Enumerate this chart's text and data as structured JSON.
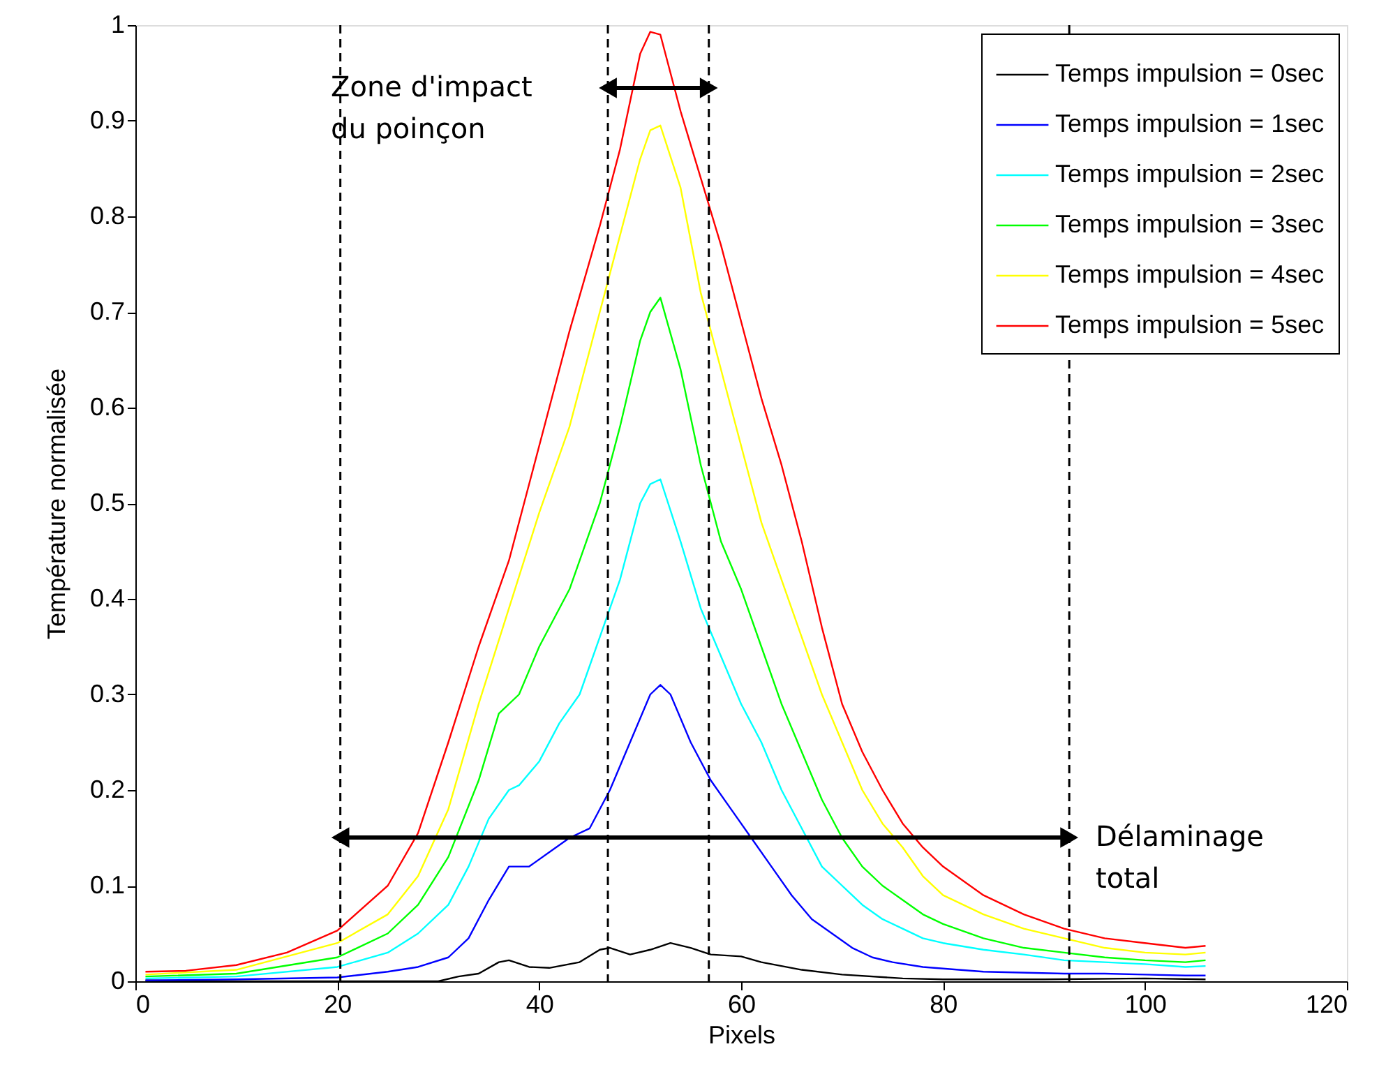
{
  "chart_data": {
    "type": "line",
    "xlabel": "Pixels",
    "ylabel": "Température normalisée",
    "xlim": [
      0,
      120
    ],
    "xticks": [
      0,
      20,
      40,
      60,
      80,
      100,
      120
    ],
    "ylim": [
      0,
      1
    ],
    "yticks": [
      0,
      0.1,
      0.2,
      0.3,
      0.4,
      0.5,
      0.6,
      0.7,
      0.8,
      0.9,
      1
    ],
    "grid": false,
    "legend": "top right",
    "marker": "none",
    "line_style": "solid",
    "series": [
      {
        "name": "Temps impulsion = 0sec",
        "color": "#000000",
        "x": [
          1,
          10,
          20,
          30,
          32,
          34,
          36,
          37,
          39,
          41,
          44,
          46,
          47,
          49,
          51,
          53,
          55,
          57,
          60,
          62,
          66,
          70,
          76,
          80,
          90,
          100,
          106
        ],
        "values": [
          0.001,
          0.0,
          0.0,
          0.0,
          0.005,
          0.008,
          0.02,
          0.022,
          0.015,
          0.014,
          0.02,
          0.033,
          0.035,
          0.028,
          0.033,
          0.04,
          0.035,
          0.028,
          0.026,
          0.02,
          0.012,
          0.007,
          0.003,
          0.002,
          0.002,
          0.003,
          0.002
        ]
      },
      {
        "name": "Temps impulsion = 1sec",
        "color": "#0000ff",
        "x": [
          1,
          10,
          20,
          25,
          28,
          31,
          33,
          35,
          37,
          39,
          41,
          43,
          45,
          47,
          49,
          51,
          52,
          53,
          55,
          57,
          59,
          61,
          63,
          65,
          67,
          69,
          71,
          73,
          75,
          78,
          84,
          92,
          96,
          100,
          104,
          106
        ],
        "values": [
          0.001,
          0.002,
          0.004,
          0.01,
          0.015,
          0.025,
          0.045,
          0.085,
          0.12,
          0.12,
          0.135,
          0.15,
          0.16,
          0.2,
          0.25,
          0.3,
          0.31,
          0.3,
          0.25,
          0.21,
          0.18,
          0.15,
          0.12,
          0.09,
          0.065,
          0.05,
          0.035,
          0.025,
          0.02,
          0.015,
          0.01,
          0.008,
          0.008,
          0.007,
          0.006,
          0.006
        ]
      },
      {
        "name": "Temps impulsion = 2sec",
        "color": "#00ffff",
        "x": [
          1,
          10,
          20,
          25,
          28,
          31,
          33,
          35,
          37,
          38,
          40,
          42,
          44,
          46,
          48,
          50,
          51,
          52,
          54,
          56,
          58,
          60,
          62,
          64,
          66,
          68,
          70,
          72,
          74,
          76,
          78,
          80,
          84,
          88,
          92,
          96,
          100,
          104,
          106
        ],
        "values": [
          0.003,
          0.005,
          0.015,
          0.03,
          0.05,
          0.08,
          0.12,
          0.17,
          0.2,
          0.205,
          0.23,
          0.27,
          0.3,
          0.36,
          0.42,
          0.5,
          0.52,
          0.525,
          0.46,
          0.39,
          0.34,
          0.29,
          0.25,
          0.2,
          0.16,
          0.12,
          0.1,
          0.08,
          0.065,
          0.055,
          0.045,
          0.04,
          0.033,
          0.028,
          0.022,
          0.02,
          0.018,
          0.015,
          0.016
        ]
      },
      {
        "name": "Temps impulsion = 3sec",
        "color": "#00ff00",
        "x": [
          1,
          10,
          20,
          25,
          28,
          31,
          34,
          36,
          38,
          40,
          43,
          46,
          48,
          50,
          51,
          52,
          54,
          56,
          58,
          60,
          62,
          64,
          66,
          68,
          70,
          72,
          74,
          76,
          78,
          80,
          84,
          88,
          92,
          96,
          100,
          104,
          106
        ],
        "values": [
          0.005,
          0.008,
          0.025,
          0.05,
          0.08,
          0.13,
          0.21,
          0.28,
          0.3,
          0.35,
          0.41,
          0.5,
          0.58,
          0.67,
          0.7,
          0.715,
          0.64,
          0.54,
          0.46,
          0.41,
          0.35,
          0.29,
          0.24,
          0.19,
          0.15,
          0.12,
          0.1,
          0.085,
          0.07,
          0.06,
          0.045,
          0.035,
          0.03,
          0.025,
          0.022,
          0.02,
          0.022
        ]
      },
      {
        "name": "Temps impulsion = 4sec",
        "color": "#ffff00",
        "x": [
          1,
          10,
          20,
          25,
          28,
          31,
          34,
          37,
          40,
          43,
          46,
          48,
          50,
          51,
          52,
          54,
          56,
          58,
          60,
          62,
          64,
          66,
          68,
          70,
          72,
          74,
          76,
          78,
          80,
          84,
          88,
          92,
          96,
          100,
          104,
          106
        ],
        "values": [
          0.007,
          0.012,
          0.04,
          0.07,
          0.11,
          0.18,
          0.29,
          0.39,
          0.49,
          0.58,
          0.7,
          0.78,
          0.86,
          0.89,
          0.895,
          0.83,
          0.72,
          0.64,
          0.56,
          0.48,
          0.42,
          0.36,
          0.3,
          0.25,
          0.2,
          0.165,
          0.14,
          0.11,
          0.09,
          0.07,
          0.055,
          0.045,
          0.035,
          0.03,
          0.028,
          0.03
        ]
      },
      {
        "name": "Temps impulsion = 5sec",
        "color": "#ff0000",
        "x": [
          1,
          5,
          10,
          15,
          20,
          25,
          28,
          31,
          34,
          37,
          40,
          43,
          46,
          48,
          50,
          51,
          52,
          54,
          56,
          58,
          60,
          62,
          64,
          66,
          68,
          70,
          72,
          74,
          76,
          78,
          80,
          84,
          88,
          92,
          96,
          100,
          104,
          106
        ],
        "values": [
          0.01,
          0.011,
          0.017,
          0.03,
          0.053,
          0.1,
          0.155,
          0.25,
          0.35,
          0.44,
          0.56,
          0.68,
          0.79,
          0.87,
          0.97,
          0.993,
          0.99,
          0.91,
          0.84,
          0.77,
          0.69,
          0.61,
          0.54,
          0.46,
          0.37,
          0.29,
          0.24,
          0.2,
          0.165,
          0.14,
          0.12,
          0.09,
          0.07,
          0.055,
          0.045,
          0.04,
          0.035,
          0.037
        ]
      }
    ],
    "ref_lines": [
      {
        "axis": "x",
        "value": 20.3,
        "label": null,
        "color": "#000000",
        "line_style": "dashed"
      },
      {
        "axis": "x",
        "value": 46.8,
        "label": null,
        "color": "#000000",
        "line_style": "dashed"
      },
      {
        "axis": "x",
        "value": 56.8,
        "label": null,
        "color": "#000000",
        "line_style": "dashed"
      },
      {
        "axis": "x",
        "value": 92.5,
        "label": null,
        "color": "#000000",
        "line_style": "dashed"
      }
    ],
    "annotations": [
      "Zone d'impact\ndu poinçon",
      "Délaminage\ntotal"
    ]
  }
}
